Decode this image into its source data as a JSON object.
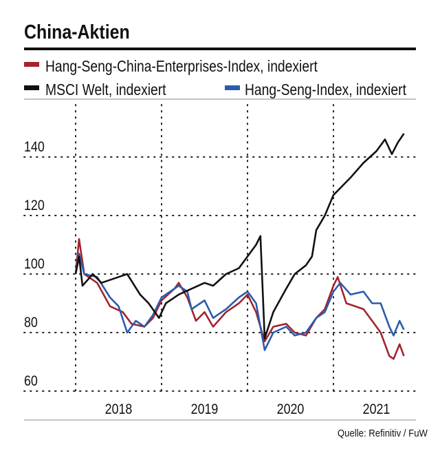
{
  "chart_data": {
    "type": "line",
    "title": "China-Aktien",
    "xlabel": "",
    "ylabel": "",
    "xlim": [
      2017.4,
      2021.96
    ],
    "ylim": [
      60,
      155
    ],
    "yticks": [
      60,
      80,
      100,
      120,
      140
    ],
    "ytick_labels": [
      "60",
      "80",
      "100",
      "120",
      "140"
    ],
    "xtick_labels": [
      {
        "label": "2018",
        "x": 2018.5
      },
      {
        "label": "2019",
        "x": 2019.5
      },
      {
        "label": "2020",
        "x": 2020.5
      },
      {
        "label": "2021",
        "x": 2021.5
      }
    ],
    "year_lines": [
      2018,
      2019,
      2020,
      2021
    ],
    "grid": true,
    "legend_placement": "top",
    "source": "Quelle: Refinitiv / FuW",
    "series": [
      {
        "name": "Hang-Seng-China-Enterprises-Index, indexiert",
        "color": "#a3232e",
        "x": [
          2018.0,
          2018.04,
          2018.1,
          2018.25,
          2018.4,
          2018.55,
          2018.65,
          2018.8,
          2018.9,
          2019.0,
          2019.15,
          2019.2,
          2019.3,
          2019.4,
          2019.5,
          2019.6,
          2019.75,
          2019.9,
          2020.0,
          2020.1,
          2020.2,
          2020.3,
          2020.45,
          2020.55,
          2020.68,
          2020.8,
          2020.9,
          2021.0,
          2021.05,
          2021.15,
          2021.35,
          2021.45,
          2021.55,
          2021.65,
          2021.7,
          2021.77,
          2021.82
        ],
        "y": [
          100,
          112,
          100,
          97,
          89,
          87,
          83,
          82,
          85,
          91,
          95,
          97,
          92,
          84,
          87,
          82,
          87,
          90,
          93,
          87,
          77,
          82,
          83,
          80,
          79,
          85,
          88,
          96,
          99,
          90,
          88,
          84,
          80,
          72,
          71,
          76,
          72
        ]
      },
      {
        "name": "MSCI Welt, indexiert",
        "color": "#111111",
        "x": [
          2018.0,
          2018.04,
          2018.08,
          2018.2,
          2018.3,
          2018.5,
          2018.6,
          2018.75,
          2018.85,
          2018.97,
          2019.05,
          2019.2,
          2019.35,
          2019.5,
          2019.6,
          2019.75,
          2019.9,
          2020.0,
          2020.1,
          2020.15,
          2020.2,
          2020.3,
          2020.45,
          2020.55,
          2020.68,
          2020.75,
          2020.8,
          2020.9,
          2021.0,
          2021.1,
          2021.2,
          2021.35,
          2021.5,
          2021.6,
          2021.68,
          2021.75,
          2021.82
        ],
        "y": [
          100,
          106,
          96,
          100,
          97,
          99,
          100,
          93,
          90,
          85,
          90,
          93,
          95,
          97,
          96,
          100,
          102,
          106,
          110,
          113,
          78,
          87,
          95,
          100,
          103,
          106,
          115,
          120,
          127,
          130,
          133,
          138,
          142,
          146,
          141,
          145,
          148
        ]
      },
      {
        "name": "Hang-Seng-Index, indexiert",
        "color": "#2b5cab",
        "x": [
          2018.0,
          2018.04,
          2018.1,
          2018.25,
          2018.4,
          2018.5,
          2018.6,
          2018.7,
          2018.8,
          2018.9,
          2019.0,
          2019.2,
          2019.3,
          2019.35,
          2019.5,
          2019.6,
          2019.75,
          2019.9,
          2020.0,
          2020.1,
          2020.2,
          2020.3,
          2020.45,
          2020.55,
          2020.68,
          2020.8,
          2020.9,
          2021.0,
          2021.08,
          2021.2,
          2021.35,
          2021.45,
          2021.55,
          2021.65,
          2021.7,
          2021.77,
          2021.82
        ],
        "y": [
          100,
          107,
          100,
          99,
          92,
          89,
          80,
          84,
          82,
          86,
          92,
          96,
          94,
          88,
          91,
          85,
          88,
          92,
          94,
          90,
          74,
          80,
          82,
          79,
          80,
          85,
          87,
          94,
          97,
          93,
          94,
          90,
          90,
          82,
          79,
          84,
          81
        ]
      }
    ]
  }
}
